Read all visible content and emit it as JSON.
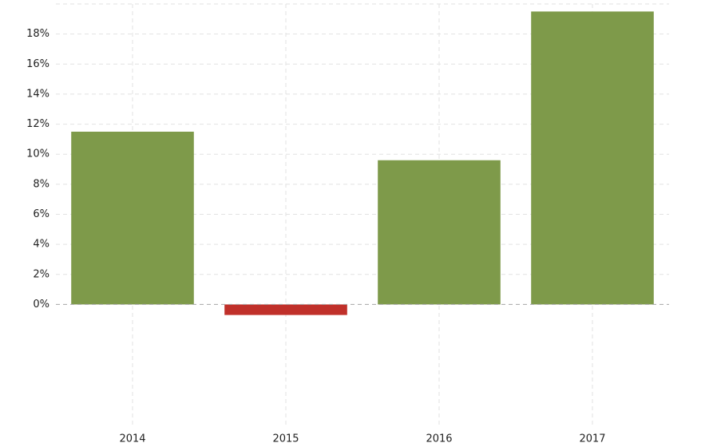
{
  "chart_data": {
    "type": "bar",
    "categories": [
      "2014",
      "2015",
      "2016",
      "2017"
    ],
    "values": [
      11.5,
      -0.7,
      9.6,
      19.5
    ],
    "colors": [
      "#7e9a4a",
      "#c0302a",
      "#7e9a4a",
      "#7e9a4a"
    ],
    "ylim": [
      -8,
      20
    ],
    "yticks": [
      {
        "value": 0,
        "label": "0%"
      },
      {
        "value": 2,
        "label": "2%"
      },
      {
        "value": 4,
        "label": "4%"
      },
      {
        "value": 6,
        "label": "6%"
      },
      {
        "value": 8,
        "label": "8%"
      },
      {
        "value": 10,
        "label": "10%"
      },
      {
        "value": 12,
        "label": "12%"
      },
      {
        "value": 14,
        "label": "14%"
      },
      {
        "value": 16,
        "label": "16%"
      },
      {
        "value": 18,
        "label": "18%"
      }
    ],
    "grid": true
  }
}
